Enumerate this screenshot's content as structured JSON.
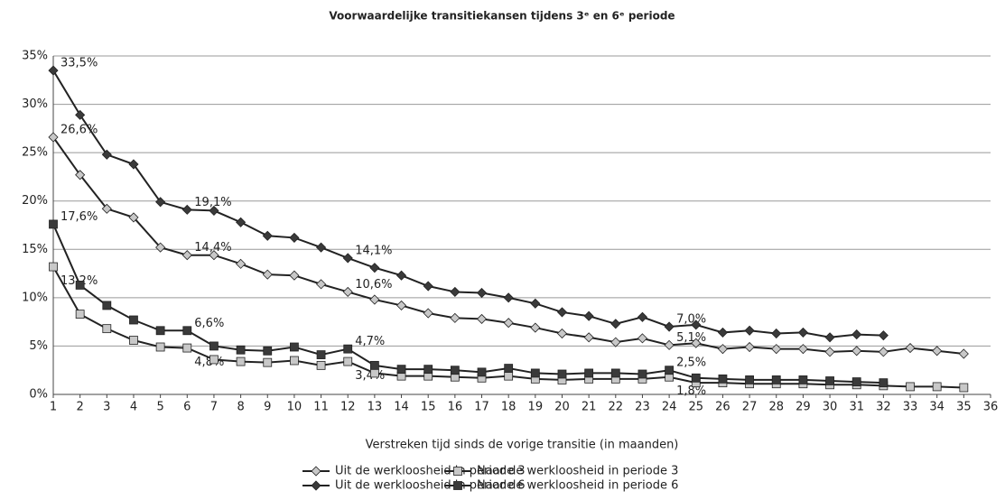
{
  "chart_data": {
    "type": "line",
    "title": "Voorwaardelijke transitiekansen tijdens 3ᵉ en 6ᵉ periode",
    "x_label": "Verstreken tijd sinds de vorige transitie (in maanden)",
    "x": [
      1,
      2,
      3,
      4,
      5,
      6,
      7,
      8,
      9,
      10,
      11,
      12,
      13,
      14,
      15,
      16,
      17,
      18,
      19,
      20,
      21,
      22,
      23,
      24,
      25,
      26,
      27,
      28,
      29,
      30,
      31,
      32,
      33,
      34,
      35
    ],
    "xlim": [
      1,
      36
    ],
    "xticks": [
      1,
      2,
      3,
      4,
      5,
      6,
      7,
      8,
      9,
      10,
      11,
      12,
      13,
      14,
      15,
      16,
      17,
      18,
      19,
      20,
      21,
      22,
      23,
      24,
      25,
      26,
      27,
      28,
      29,
      30,
      31,
      32,
      33,
      34,
      35,
      36
    ],
    "ylim": [
      0,
      35
    ],
    "yticks": [
      {
        "value": 0,
        "label": "0%"
      },
      {
        "value": 5,
        "label": "5%"
      },
      {
        "value": 10,
        "label": "10%"
      },
      {
        "value": 15,
        "label": "15%"
      },
      {
        "value": 20,
        "label": "20%"
      },
      {
        "value": 25,
        "label": "25%"
      },
      {
        "value": 30,
        "label": "30%"
      },
      {
        "value": 35,
        "label": "35%"
      }
    ],
    "grid": true,
    "legend": "bottom",
    "series": [
      {
        "name": "Uit de werkloosheid in periode 3",
        "marker": "diamond",
        "color": "#c8c8c8",
        "values": [
          26.6,
          22.7,
          19.2,
          18.3,
          15.2,
          14.4,
          14.4,
          13.5,
          12.4,
          12.3,
          11.4,
          10.6,
          9.8,
          9.2,
          8.4,
          7.9,
          7.8,
          7.4,
          6.9,
          6.3,
          5.9,
          5.4,
          5.8,
          5.1,
          5.3,
          4.7,
          4.9,
          4.7,
          4.7,
          4.4,
          4.5,
          4.4,
          4.8,
          4.5,
          4.2
        ],
        "value_labels": [
          "26,6%",
          null,
          null,
          null,
          null,
          "14,4%",
          null,
          null,
          null,
          null,
          null,
          "10,6%",
          null,
          null,
          null,
          null,
          null,
          null,
          null,
          null,
          null,
          null,
          null,
          "5,1%",
          null,
          null,
          null,
          null,
          null,
          null,
          null,
          null,
          null,
          null,
          null
        ]
      },
      {
        "name": "Naar de werkloosheid in periode 3",
        "marker": "square",
        "color": "#c8c8c8",
        "values": [
          13.2,
          8.3,
          6.8,
          5.6,
          4.9,
          4.8,
          3.6,
          3.4,
          3.3,
          3.5,
          3.0,
          3.4,
          2.2,
          1.9,
          1.9,
          1.8,
          1.7,
          1.9,
          1.6,
          1.5,
          1.6,
          1.6,
          1.6,
          1.8,
          1.2,
          1.2,
          1.1,
          1.1,
          1.1,
          1.0,
          1.0,
          0.9,
          0.8,
          0.8,
          0.7
        ],
        "value_labels": [
          "13,2%",
          null,
          null,
          null,
          null,
          "4,8%",
          null,
          null,
          null,
          null,
          null,
          "3,4%",
          null,
          null,
          null,
          null,
          null,
          null,
          null,
          null,
          null,
          null,
          null,
          "1,8%",
          null,
          null,
          null,
          null,
          null,
          null,
          null,
          null,
          null,
          null,
          null
        ]
      },
      {
        "name": "Uit de werkloosheid in periode 6",
        "marker": "diamond",
        "color": "#3a3a3a",
        "values": [
          33.5,
          28.9,
          24.8,
          23.8,
          19.9,
          19.1,
          19.0,
          17.8,
          16.4,
          16.2,
          15.2,
          14.1,
          13.1,
          12.3,
          11.2,
          10.6,
          10.5,
          10.0,
          9.4,
          8.5,
          8.1,
          7.3,
          8.0,
          7.0,
          7.2,
          6.4,
          6.6,
          6.3,
          6.4,
          5.9,
          6.2,
          6.1,
          null,
          null,
          null
        ],
        "value_labels": [
          "33,5%",
          null,
          null,
          null,
          null,
          "19,1%",
          null,
          null,
          null,
          null,
          null,
          "14,1%",
          null,
          null,
          null,
          null,
          null,
          null,
          null,
          null,
          null,
          null,
          null,
          "7,0%",
          null,
          null,
          null,
          null,
          null,
          null,
          null,
          null,
          null,
          null,
          null
        ]
      },
      {
        "name": "Naar de werkloosheid in periode 6",
        "marker": "square",
        "color": "#3a3a3a",
        "values": [
          17.6,
          11.3,
          9.2,
          7.7,
          6.6,
          6.6,
          5.0,
          4.6,
          4.5,
          4.9,
          4.1,
          4.7,
          3.0,
          2.6,
          2.6,
          2.5,
          2.3,
          2.7,
          2.2,
          2.1,
          2.2,
          2.2,
          2.1,
          2.5,
          1.7,
          1.6,
          1.5,
          1.5,
          1.5,
          1.4,
          1.3,
          1.2,
          null,
          null,
          null
        ],
        "value_labels": [
          "17,6%",
          null,
          null,
          null,
          null,
          "6,6%",
          null,
          null,
          null,
          null,
          null,
          "4,7%",
          null,
          null,
          null,
          null,
          null,
          null,
          null,
          null,
          null,
          null,
          null,
          "2,5%",
          null,
          null,
          null,
          null,
          null,
          null,
          null,
          null,
          null,
          null,
          null
        ]
      }
    ]
  }
}
